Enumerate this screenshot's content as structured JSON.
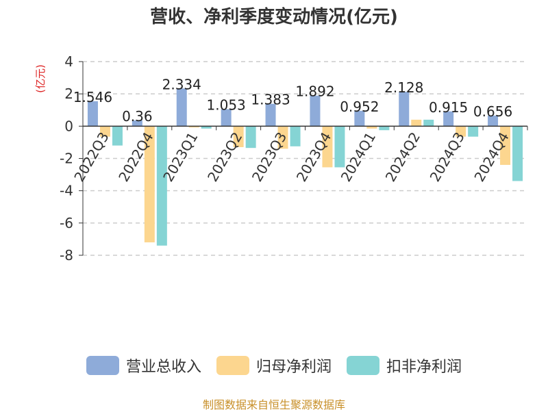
{
  "chart_data": {
    "type": "bar",
    "title": "营收、净利季度变动情况(亿元)",
    "ylabel": "(亿元)",
    "ylim": [
      -8,
      4
    ],
    "yticks": [
      4,
      2,
      0,
      -2,
      -4,
      -6,
      -8
    ],
    "grid": true,
    "legend_position": "bottom",
    "categories": [
      "2022Q3",
      "2022Q4",
      "2023Q1",
      "2023Q2",
      "2023Q3",
      "2023Q4",
      "2024Q1",
      "2024Q2",
      "2024Q3",
      "2024Q4"
    ],
    "series": [
      {
        "name": "营业总收入",
        "color": "#8eabd9",
        "values": [
          1.546,
          0.36,
          2.334,
          1.053,
          1.383,
          1.892,
          0.952,
          2.128,
          0.915,
          0.656
        ],
        "labels": [
          "1.546",
          "0.36",
          "2.334",
          "1.053",
          "1.383",
          "1.892",
          "0.952",
          "2.128",
          "0.915",
          "0.656"
        ]
      },
      {
        "name": "归母净利润",
        "color": "#fcd68f",
        "values": [
          -0.65,
          -7.2,
          -0.08,
          -1.3,
          -1.4,
          -2.55,
          -0.15,
          0.4,
          -0.65,
          -2.4
        ]
      },
      {
        "name": "扣非净利润",
        "color": "#85d4d4",
        "values": [
          -1.2,
          -7.4,
          -0.15,
          -1.35,
          -1.25,
          -2.55,
          -0.25,
          0.4,
          -0.65,
          -3.4
        ]
      }
    ]
  },
  "source_note": "制图数据来自恒生聚源数据库"
}
